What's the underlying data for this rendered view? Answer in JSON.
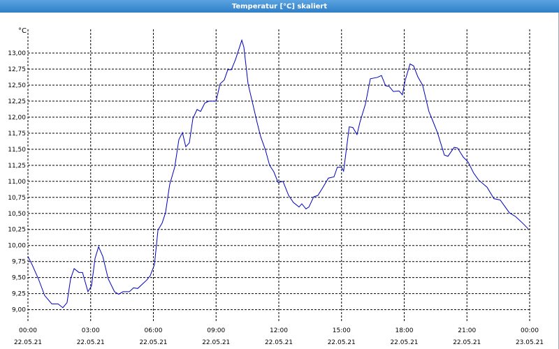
{
  "chart_data": {
    "type": "line",
    "title": "Temperatur [°C] skaliert",
    "y_unit": "°C",
    "x": [
      0,
      0.2,
      0.5,
      0.8,
      1.14,
      1.44,
      1.67,
      1.87,
      2.04,
      2.21,
      2.44,
      2.61,
      2.87,
      3.04,
      3.21,
      3.38,
      3.58,
      3.84,
      4.14,
      4.34,
      4.55,
      4.85,
      5.05,
      5.25,
      5.48,
      5.68,
      5.85,
      6.05,
      6.22,
      6.42,
      6.58,
      6.78,
      7.02,
      7.22,
      7.39,
      7.55,
      7.72,
      7.89,
      8.09,
      8.26,
      8.46,
      8.66,
      8.86,
      9.0,
      9.19,
      9.39,
      9.56,
      9.73,
      9.93,
      10.1,
      10.23,
      10.33,
      10.53,
      10.76,
      10.96,
      11.13,
      11.36,
      11.56,
      11.76,
      11.97,
      12.2,
      12.47,
      12.7,
      12.97,
      13.1,
      13.3,
      13.44,
      13.67,
      13.87,
      14.1,
      14.37,
      14.64,
      14.8,
      15.0,
      15.1,
      15.37,
      15.54,
      15.74,
      15.88,
      16.14,
      16.38,
      16.71,
      16.91,
      17.11,
      17.28,
      17.48,
      17.75,
      17.91,
      18.05,
      18.28,
      18.45,
      18.65,
      18.88,
      19.18,
      19.32,
      19.59,
      19.92,
      20.09,
      20.39,
      20.55,
      20.82,
      21.06,
      21.32,
      21.56,
      21.96,
      22.29,
      22.59,
      23.03,
      23.33,
      23.66,
      23.93
    ],
    "series": [
      {
        "color": "#0000c0",
        "values": [
          9.83,
          9.7,
          9.48,
          9.22,
          9.09,
          9.09,
          9.03,
          9.11,
          9.48,
          9.64,
          9.58,
          9.58,
          9.28,
          9.37,
          9.8,
          9.98,
          9.83,
          9.48,
          9.28,
          9.24,
          9.28,
          9.28,
          9.34,
          9.33,
          9.4,
          9.46,
          9.53,
          9.7,
          10.24,
          10.35,
          10.51,
          10.95,
          11.22,
          11.65,
          11.76,
          11.54,
          11.6,
          11.98,
          12.12,
          12.09,
          12.22,
          12.25,
          12.25,
          12.25,
          12.52,
          12.58,
          12.74,
          12.74,
          12.9,
          13.07,
          13.2,
          13.09,
          12.52,
          12.2,
          11.92,
          11.7,
          11.49,
          11.25,
          11.15,
          10.98,
          11.0,
          10.78,
          10.67,
          10.6,
          10.65,
          10.57,
          10.6,
          10.76,
          10.78,
          10.9,
          11.05,
          11.07,
          11.22,
          11.22,
          11.16,
          11.85,
          11.84,
          11.73,
          11.92,
          12.2,
          12.6,
          12.62,
          12.65,
          12.49,
          12.48,
          12.4,
          12.41,
          12.35,
          12.58,
          12.83,
          12.8,
          12.63,
          12.5,
          12.09,
          11.98,
          11.76,
          11.41,
          11.39,
          11.53,
          11.52,
          11.38,
          11.3,
          11.13,
          11.02,
          10.91,
          10.73,
          10.71,
          10.51,
          10.45,
          10.35,
          10.26
        ]
      }
    ],
    "xlim": [
      0,
      24
    ],
    "xticks": [
      {
        "value": 0,
        "label": "00:00",
        "sublabel": "22.05.21"
      },
      {
        "value": 3,
        "label": "03:00",
        "sublabel": "22.05.21"
      },
      {
        "value": 6,
        "label": "06:00",
        "sublabel": "22.05.21"
      },
      {
        "value": 9,
        "label": "09:00",
        "sublabel": "22.05.21"
      },
      {
        "value": 12,
        "label": "12:00",
        "sublabel": "22.05.21"
      },
      {
        "value": 15,
        "label": "15:00",
        "sublabel": "22.05.21"
      },
      {
        "value": 18,
        "label": "18:00",
        "sublabel": "22.05.21"
      },
      {
        "value": 21,
        "label": "21:00",
        "sublabel": "22.05.21"
      },
      {
        "value": 24,
        "label": "00:00",
        "sublabel": "23.05.21"
      }
    ],
    "ylim": [
      8.8,
      13.37
    ],
    "yticks": [
      {
        "value": 9,
        "label": "9,00"
      },
      {
        "value": 9.25,
        "label": "9,25"
      },
      {
        "value": 9.5,
        "label": "9,50"
      },
      {
        "value": 9.75,
        "label": "9,75"
      },
      {
        "value": 10,
        "label": "10,00"
      },
      {
        "value": 10.25,
        "label": "10,25"
      },
      {
        "value": 10.5,
        "label": "10,50"
      },
      {
        "value": 10.75,
        "label": "10,75"
      },
      {
        "value": 11,
        "label": "11,00"
      },
      {
        "value": 11.25,
        "label": "11,25"
      },
      {
        "value": 11.5,
        "label": "11,50"
      },
      {
        "value": 11.75,
        "label": "11,75"
      },
      {
        "value": 12,
        "label": "12,00"
      },
      {
        "value": 12.25,
        "label": "12,25"
      },
      {
        "value": 12.5,
        "label": "12,50"
      },
      {
        "value": 12.75,
        "label": "12,75"
      },
      {
        "value": 13,
        "label": "13,00"
      }
    ],
    "grid": true
  }
}
